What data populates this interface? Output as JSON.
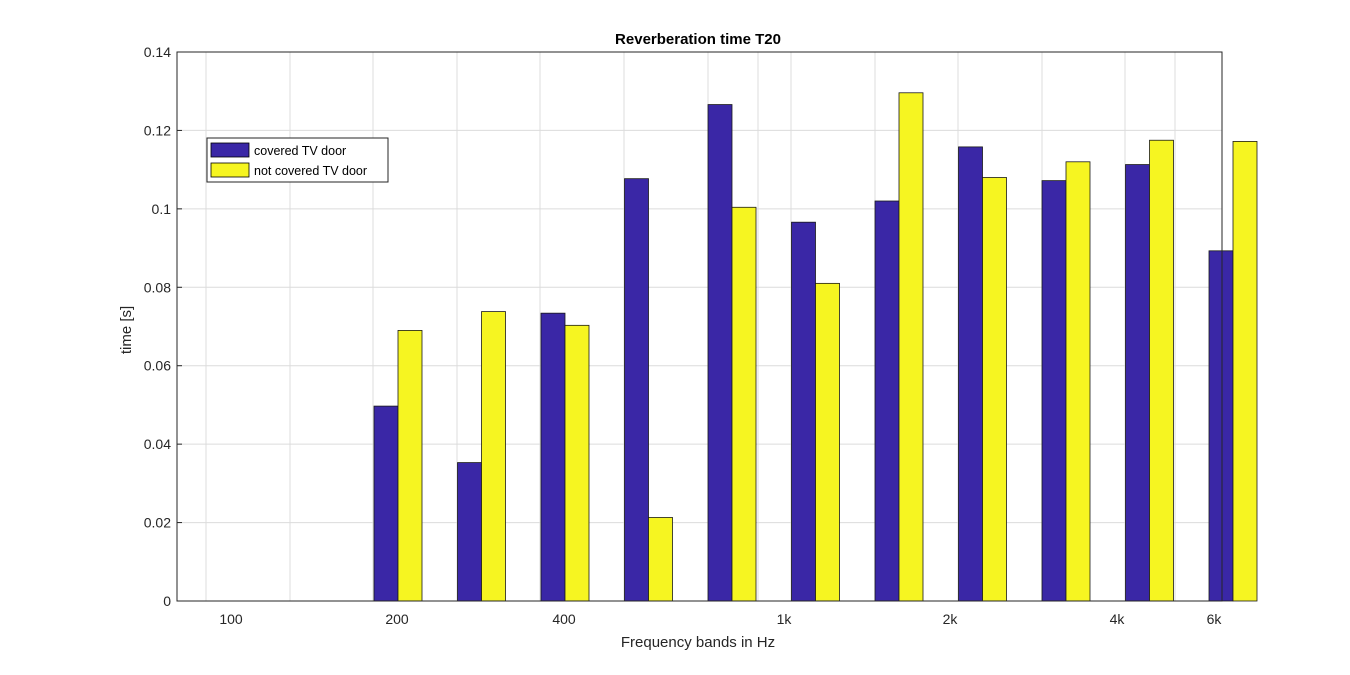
{
  "chart_data": {
    "type": "bar",
    "title": "Reverberation time T20",
    "xlabel": "Frequency bands in Hz",
    "ylabel": "time [s]",
    "ylim": [
      0,
      0.14
    ],
    "yticks": [
      "0",
      "0.02",
      "0.04",
      "0.06",
      "0.08",
      "0.1",
      "0.12",
      "0.14"
    ],
    "xtick_labels": [
      "100",
      "200",
      "400",
      "1k",
      "2k",
      "4k",
      "6k"
    ],
    "grid": true,
    "legend_position": "top-left",
    "colors": {
      "covered": "#3a27a6",
      "not_covered": "#f6f521"
    },
    "series": [
      {
        "name": "covered TV door",
        "values": [
          0.0,
          0.0,
          0.0497,
          0.0353,
          0.0734,
          0.1077,
          0.1266,
          0.0966,
          0.102,
          0.1158,
          0.1072,
          0.1113,
          0.0893
        ]
      },
      {
        "name": "not covered TV door",
        "values": [
          0.0,
          0.0,
          0.069,
          0.0738,
          0.0703,
          0.0213,
          0.1004,
          0.081,
          0.1296,
          0.108,
          0.112,
          0.1175,
          0.1172
        ]
      }
    ]
  }
}
